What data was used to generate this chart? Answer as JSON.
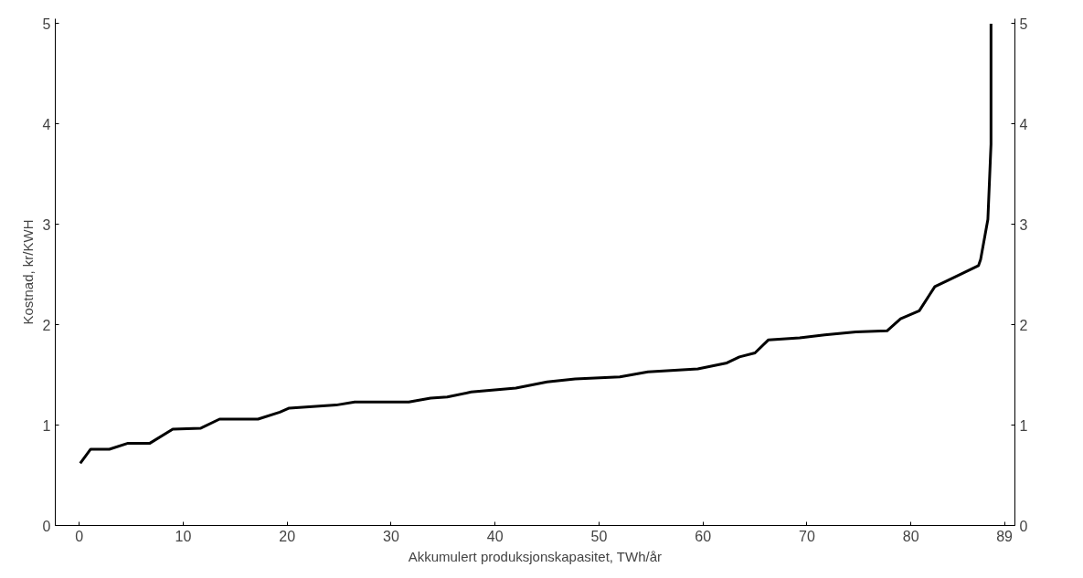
{
  "chart_data": {
    "type": "line",
    "xlabel": "Akkumulert produksjonskapasitet, TWh/år",
    "ylabel": "Kostnad, kr/KWH",
    "x": [
      0.1,
      1.1,
      2.9,
      4.7,
      6.8,
      9,
      11.7,
      13.5,
      17.2,
      19.3,
      20.2,
      24.7,
      26.5,
      31.7,
      33.8,
      35.4,
      37.7,
      42,
      45,
      47.7,
      52,
      54.7,
      59.5,
      62.3,
      63.5,
      65,
      66.3,
      69.3,
      71.7,
      74.7,
      77.7,
      79,
      80.8,
      82.3,
      83.5,
      86.5,
      86.7,
      87.4,
      87.7,
      87.7
    ],
    "series": [
      {
        "color": "#000000",
        "values": [
          0.62,
          0.76,
          0.76,
          0.82,
          0.82,
          0.96,
          0.97,
          1.06,
          1.06,
          1.13,
          1.17,
          1.2,
          1.23,
          1.23,
          1.27,
          1.28,
          1.33,
          1.37,
          1.43,
          1.46,
          1.48,
          1.53,
          1.56,
          1.62,
          1.68,
          1.72,
          1.85,
          1.87,
          1.9,
          1.93,
          1.94,
          2.06,
          2.14,
          2.38,
          2.44,
          2.59,
          2.65,
          3.05,
          3.8,
          5.0
        ]
      }
    ],
    "xlim": [
      -2.3,
      90
    ],
    "xticks": [
      0,
      10,
      20,
      30,
      40,
      50,
      60,
      70,
      80,
      89
    ],
    "ylim": [
      0,
      5.05
    ],
    "yticks": [
      0,
      1,
      2,
      3,
      4,
      5
    ],
    "y2lim": [
      0,
      5.05
    ],
    "y2ticks": [
      0,
      1,
      2,
      3,
      4,
      5
    ],
    "grid": false,
    "marker": "none",
    "line_style": "solid"
  }
}
